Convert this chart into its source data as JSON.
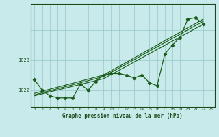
{
  "xlabel": "Graphe pression niveau de la mer (hPa)",
  "bg_color": "#c8eaea",
  "grid_color": "#9ecece",
  "line_color": "#1a5c1a",
  "x_ticks": [
    0,
    1,
    2,
    3,
    4,
    5,
    6,
    7,
    8,
    9,
    10,
    11,
    12,
    13,
    14,
    15,
    16,
    17,
    18,
    19,
    20,
    21,
    22,
    23
  ],
  "xlim": [
    -0.5,
    23.5
  ],
  "ylim": [
    1021.45,
    1024.85
  ],
  "yticks": [
    1022,
    1023
  ],
  "main_x": [
    0,
    1,
    2,
    3,
    4,
    5,
    6,
    7,
    8,
    9,
    10,
    11,
    12,
    13,
    14,
    15,
    16,
    17,
    18,
    19,
    20,
    21,
    22
  ],
  "main_y": [
    1022.35,
    1022.0,
    1021.82,
    1021.75,
    1021.75,
    1021.75,
    1022.2,
    1022.0,
    1022.3,
    1022.5,
    1022.55,
    1022.55,
    1022.5,
    1022.4,
    1022.5,
    1022.25,
    1022.15,
    1023.2,
    1023.5,
    1023.75,
    1024.35,
    1024.4,
    1024.2
  ],
  "trend1_x": [
    0,
    9,
    22
  ],
  "trend1_y": [
    1021.9,
    1022.5,
    1024.35
  ],
  "trend2_x": [
    0,
    9,
    22
  ],
  "trend2_y": [
    1021.85,
    1022.45,
    1024.28
  ],
  "trend3_x": [
    0,
    9,
    22
  ],
  "trend3_y": [
    1021.82,
    1022.38,
    1024.18
  ]
}
